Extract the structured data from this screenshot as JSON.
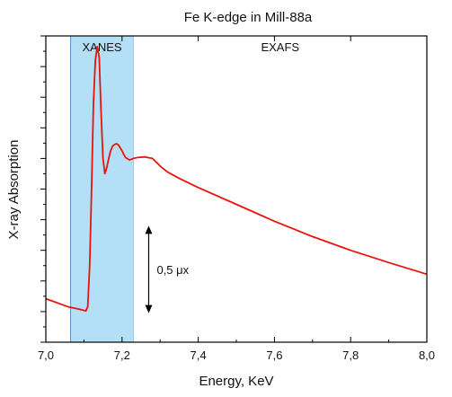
{
  "chart_data": {
    "type": "line",
    "title": "Fe K-edge in Mill-88a",
    "xlabel": "Energy, KeV",
    "ylabel": "X-ray Absorption",
    "xlim": [
      7.0,
      8.0
    ],
    "ylim": [
      0.0,
      1.0
    ],
    "x_ticks": [
      7.0,
      7.2,
      7.4,
      7.6,
      7.8,
      8.0
    ],
    "x_tick_labels": [
      "7,0",
      "7,2",
      "7,4",
      "7,6",
      "7,8",
      "8,0"
    ],
    "y_tick_labels_shown": false,
    "grid": false,
    "legend": "none",
    "line_color": "#e8140c",
    "regions": [
      {
        "label": "XANES",
        "x_start": 7.065,
        "x_end": 7.23,
        "color": "#b3e0f7"
      },
      {
        "label": "EXAFS",
        "x_start": 7.23,
        "x_end": 8.0,
        "color": "#ffffff"
      }
    ],
    "annotations": [
      {
        "text": "0,5 μx",
        "x": 7.27,
        "y_from": 0.095,
        "y_to": 0.38
      }
    ],
    "series": [
      {
        "x": [
          7.0,
          7.02,
          7.04,
          7.06,
          7.08,
          7.1,
          7.105,
          7.11,
          7.115,
          7.12,
          7.125,
          7.13,
          7.135,
          7.14,
          7.145,
          7.15,
          7.155,
          7.16,
          7.165,
          7.17,
          7.175,
          7.18,
          7.185,
          7.19,
          7.195,
          7.2,
          7.205,
          7.21,
          7.22,
          7.23,
          7.24,
          7.26,
          7.28,
          7.3,
          7.32,
          7.35,
          7.4,
          7.5,
          7.6,
          7.7,
          7.8,
          7.9,
          8.0
        ],
        "values": [
          0.142,
          0.133,
          0.124,
          0.115,
          0.11,
          0.104,
          0.102,
          0.115,
          0.25,
          0.5,
          0.78,
          0.92,
          0.965,
          0.93,
          0.75,
          0.6,
          0.55,
          0.57,
          0.6,
          0.625,
          0.64,
          0.645,
          0.648,
          0.645,
          0.635,
          0.625,
          0.612,
          0.602,
          0.595,
          0.6,
          0.603,
          0.605,
          0.6,
          0.575,
          0.555,
          0.535,
          0.505,
          0.45,
          0.395,
          0.345,
          0.3,
          0.26,
          0.222
        ]
      }
    ]
  }
}
